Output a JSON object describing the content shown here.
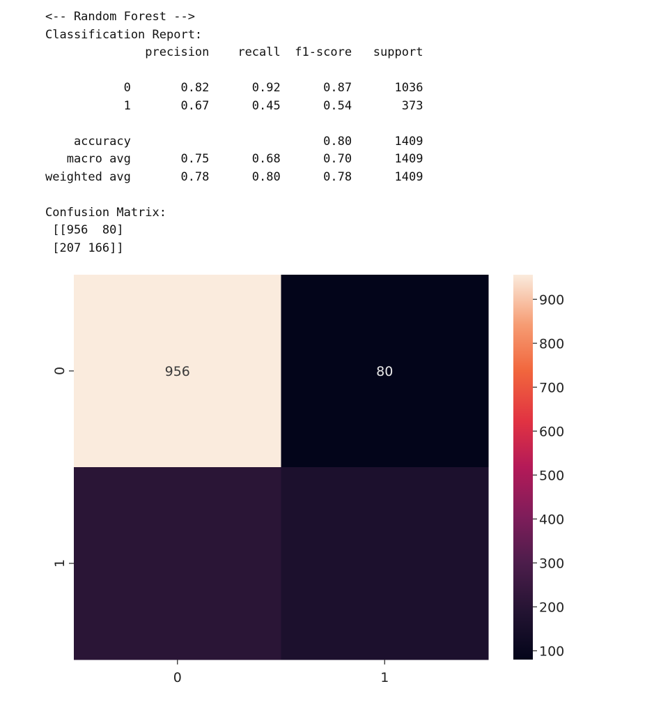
{
  "report": {
    "lines": [
      "<-- Random Forest -->",
      "Classification Report:",
      "              precision    recall  f1-score   support",
      "",
      "           0       0.82      0.92      0.87      1036",
      "           1       0.67      0.45      0.54       373",
      "",
      "    accuracy                           0.80      1409",
      "   macro avg       0.75      0.68      0.70      1409",
      "weighted avg       0.78      0.80      0.78      1409",
      "",
      "Confusion Matrix:",
      " [[956  80]",
      " [207 166]]"
    ]
  },
  "chart_data": {
    "type": "heatmap",
    "x_categories": [
      "0",
      "1"
    ],
    "y_categories": [
      "0",
      "1"
    ],
    "values": [
      [
        956,
        80
      ],
      [
        207,
        166
      ]
    ],
    "annotations": [
      [
        "956",
        "80"
      ],
      [
        "",
        ""
      ]
    ],
    "colormap": "rocket",
    "colorbar": {
      "vmin": 80,
      "vmax": 956,
      "ticks": [
        100,
        200,
        300,
        400,
        500,
        600,
        700,
        800,
        900
      ]
    },
    "title": "",
    "xlabel": "",
    "ylabel": ""
  }
}
